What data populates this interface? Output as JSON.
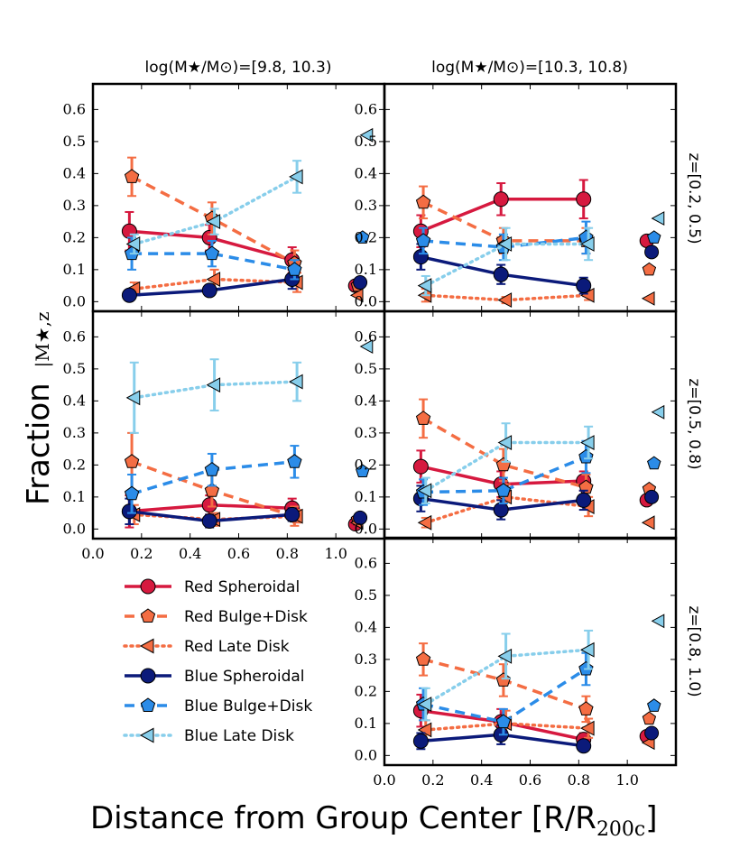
{
  "figure": {
    "ylabel_main": "Fraction",
    "ylabel_sub": "|M★,z",
    "xlabel_main": "Distance from Group Center [R/R",
    "xlabel_sub": "200c",
    "xlabel_close": "]"
  },
  "columns": [
    "log(M★/M⊙)=[9.8, 10.3)",
    "log(M★/M⊙)=[10.3, 10.8)"
  ],
  "rows": [
    "z=[0.2, 0.5)",
    "z=[0.5, 0.8)",
    "z=[0.8, 1.0)"
  ],
  "axes": {
    "xlim": [
      0.0,
      1.2
    ],
    "ylim": [
      -0.03,
      0.68
    ],
    "xticks": [
      0.0,
      0.2,
      0.4,
      0.6,
      0.8,
      1.0
    ],
    "xtick_labels": [
      "0.0",
      "0.2",
      "0.4",
      "0.6",
      "0.8",
      "1.0"
    ],
    "yticks": [
      0.0,
      0.1,
      0.2,
      0.3,
      0.4,
      0.5,
      0.6
    ],
    "ytick_labels": [
      "0.0",
      "0.1",
      "0.2",
      "0.3",
      "0.4",
      "0.5",
      "0.6"
    ]
  },
  "legend": {
    "items": [
      "Red Spheroidal",
      "Red Bulge+Disk",
      "Red Late Disk",
      "Blue Spheroidal",
      "Blue Bulge+Disk",
      "Blue Late Disk"
    ]
  },
  "chart_data": {
    "type": "scatter",
    "x": [
      0.15,
      0.48,
      0.82
    ],
    "x_offsets": [
      0.0,
      0.01,
      0.02,
      0.0,
      0.01,
      0.02
    ],
    "field_x": 1.1,
    "field_x_offsets": [
      -0.02,
      -0.01,
      -0.01,
      0.0,
      0.01,
      0.03
    ],
    "styles": [
      {
        "color": "#d6193f",
        "marker": "circle",
        "line": "solid"
      },
      {
        "color": "#f46d43",
        "marker": "pentagon",
        "line": "dashed"
      },
      {
        "color": "#f46d43",
        "marker": "triangle-left",
        "line": "dotted"
      },
      {
        "color": "#0b1a7a",
        "marker": "circle",
        "line": "solid"
      },
      {
        "color": "#2b8ce8",
        "marker": "pentagon",
        "line": "dashed"
      },
      {
        "color": "#87ceeb",
        "marker": "triangle-left",
        "line": "dotted"
      }
    ],
    "panels": [
      {
        "row": 0,
        "col": 0,
        "series": [
          {
            "name": "Red Spheroidal",
            "values": [
              0.22,
              0.2,
              0.13
            ],
            "err": [
              0.06,
              0.04,
              0.04
            ],
            "field": 0.05
          },
          {
            "name": "Red Bulge+Disk",
            "values": [
              0.39,
              0.26,
              0.12
            ],
            "err": [
              0.06,
              0.05,
              0.04
            ],
            "field": 0.05
          },
          {
            "name": "Red Late Disk",
            "values": [
              0.04,
              0.07,
              0.06
            ],
            "err": [
              0.02,
              0.03,
              0.03
            ],
            "field": 0.02
          },
          {
            "name": "Blue Spheroidal",
            "values": [
              0.02,
              0.035,
              0.07
            ],
            "err": [
              0.01,
              0.015,
              0.03
            ],
            "field": 0.06
          },
          {
            "name": "Blue Bulge+Disk",
            "values": [
              0.15,
              0.15,
              0.1
            ],
            "err": [
              0.05,
              0.04,
              0.03
            ],
            "field": 0.2
          },
          {
            "name": "Blue Late Disk",
            "values": [
              0.18,
              0.25,
              0.39
            ],
            "err": [
              0.03,
              0.04,
              0.05
            ],
            "field": 0.52
          }
        ]
      },
      {
        "row": 0,
        "col": 1,
        "series": [
          {
            "name": "Red Spheroidal",
            "values": [
              0.22,
              0.32,
              0.32
            ],
            "err": [
              0.05,
              0.05,
              0.06
            ],
            "field": 0.19
          },
          {
            "name": "Red Bulge+Disk",
            "values": [
              0.31,
              0.19,
              0.19
            ],
            "err": [
              0.05,
              0.04,
              0.04
            ],
            "field": 0.1
          },
          {
            "name": "Red Late Disk",
            "values": [
              0.02,
              0.005,
              0.02
            ],
            "err": [
              0.02,
              0.01,
              0.015
            ],
            "field": 0.01
          },
          {
            "name": "Blue Spheroidal",
            "values": [
              0.14,
              0.085,
              0.05
            ],
            "err": [
              0.04,
              0.03,
              0.025
            ],
            "field": 0.155
          },
          {
            "name": "Blue Bulge+Disk",
            "values": [
              0.19,
              0.17,
              0.2
            ],
            "err": [
              0.04,
              0.04,
              0.05
            ],
            "field": 0.2
          },
          {
            "name": "Blue Late Disk",
            "values": [
              0.05,
              0.18,
              0.18
            ],
            "err": [
              0.03,
              0.05,
              0.05
            ],
            "field": 0.26
          }
        ]
      },
      {
        "row": 1,
        "col": 0,
        "series": [
          {
            "name": "Red Spheroidal",
            "values": [
              0.055,
              0.075,
              0.065
            ],
            "err": [
              0.05,
              0.03,
              0.03
            ],
            "field": 0.015
          },
          {
            "name": "Red Bulge+Disk",
            "values": [
              0.21,
              0.12,
              0.04
            ],
            "err": [
              0.09,
              0.05,
              0.03
            ],
            "field": 0.03
          },
          {
            "name": "Red Late Disk",
            "values": [
              0.045,
              0.03,
              0.04
            ],
            "err": [
              0.03,
              0.02,
              0.02
            ],
            "field": 0.02
          },
          {
            "name": "Blue Spheroidal",
            "values": [
              0.055,
              0.025,
              0.045
            ],
            "err": [
              0.04,
              0.02,
              0.02
            ],
            "field": 0.035
          },
          {
            "name": "Blue Bulge+Disk",
            "values": [
              0.11,
              0.185,
              0.21
            ],
            "err": [
              0.06,
              0.05,
              0.05
            ],
            "field": 0.18
          },
          {
            "name": "Blue Late Disk",
            "values": [
              0.41,
              0.45,
              0.46
            ],
            "err": [
              0.11,
              0.08,
              0.06
            ],
            "field": 0.57
          }
        ]
      },
      {
        "row": 1,
        "col": 1,
        "series": [
          {
            "name": "Red Spheroidal",
            "values": [
              0.195,
              0.14,
              0.15
            ],
            "err": [
              0.05,
              0.04,
              0.03
            ],
            "field": 0.09
          },
          {
            "name": "Red Bulge+Disk",
            "values": [
              0.345,
              0.2,
              0.13
            ],
            "err": [
              0.06,
              0.05,
              0.04
            ],
            "field": 0.125
          },
          {
            "name": "Red Late Disk",
            "values": [
              0.02,
              0.1,
              0.07
            ],
            "err": [
              0.015,
              0.04,
              0.03
            ],
            "field": 0.02
          },
          {
            "name": "Blue Spheroidal",
            "values": [
              0.095,
              0.06,
              0.09
            ],
            "err": [
              0.04,
              0.03,
              0.03
            ],
            "field": 0.1
          },
          {
            "name": "Blue Bulge+Disk",
            "values": [
              0.115,
              0.12,
              0.225
            ],
            "err": [
              0.04,
              0.04,
              0.05
            ],
            "field": 0.205
          },
          {
            "name": "Blue Late Disk",
            "values": [
              0.12,
              0.27,
              0.27
            ],
            "err": [
              0.04,
              0.06,
              0.05
            ],
            "field": 0.365
          }
        ]
      },
      {
        "row": 2,
        "col": 1,
        "series": [
          {
            "name": "Red Spheroidal",
            "values": [
              0.14,
              0.105,
              0.05
            ],
            "err": [
              0.05,
              0.04,
              0.02
            ],
            "field": 0.06
          },
          {
            "name": "Red Bulge+Disk",
            "values": [
              0.3,
              0.235,
              0.145
            ],
            "err": [
              0.05,
              0.05,
              0.04
            ],
            "field": 0.115
          },
          {
            "name": "Red Late Disk",
            "values": [
              0.08,
              0.1,
              0.085
            ],
            "err": [
              0.03,
              0.04,
              0.03
            ],
            "field": 0.04
          },
          {
            "name": "Blue Spheroidal",
            "values": [
              0.045,
              0.065,
              0.03
            ],
            "err": [
              0.025,
              0.03,
              0.015
            ],
            "field": 0.07
          },
          {
            "name": "Blue Bulge+Disk",
            "values": [
              0.16,
              0.105,
              0.27
            ],
            "err": [
              0.05,
              0.04,
              0.05
            ],
            "field": 0.155
          },
          {
            "name": "Blue Late Disk",
            "values": [
              0.16,
              0.31,
              0.33
            ],
            "err": [
              0.05,
              0.07,
              0.06
            ],
            "field": 0.42
          }
        ]
      }
    ]
  }
}
